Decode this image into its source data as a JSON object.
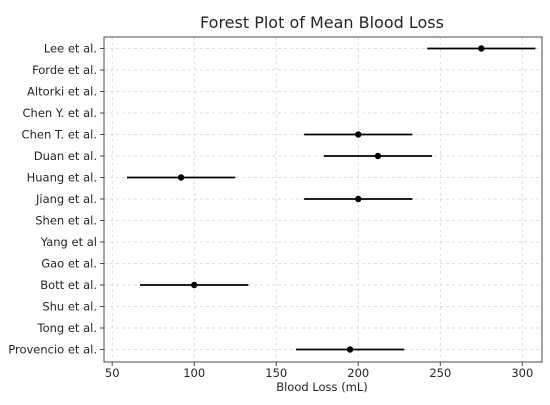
{
  "chart_data": {
    "type": "scatter",
    "title": "Forest Plot of Mean Blood Loss",
    "xlabel": "Blood Loss (mL)",
    "ylabel": "",
    "xlim": [
      45,
      312
    ],
    "xticks": [
      50,
      100,
      150,
      200,
      250,
      300
    ],
    "grid": true,
    "categories": [
      "Lee et al.",
      "Forde et al.",
      "Altorki et al.",
      "Chen Y. et al.",
      "Chen T. et al.",
      "Duan et al.",
      "Huang et al.",
      "Jiang et al.",
      "Shen et al.",
      "Yang et al",
      "Gao et al.",
      "Bott et al.",
      "Shu et al.",
      "Tong et al.",
      "Provencio et al."
    ],
    "points": [
      {
        "study": "Lee et al.",
        "mean": 275,
        "lower": 242,
        "upper": 308
      },
      {
        "study": "Forde et al.",
        "mean": null,
        "lower": null,
        "upper": null
      },
      {
        "study": "Altorki et al.",
        "mean": null,
        "lower": null,
        "upper": null
      },
      {
        "study": "Chen Y. et al.",
        "mean": null,
        "lower": null,
        "upper": null
      },
      {
        "study": "Chen T. et al.",
        "mean": 200,
        "lower": 167,
        "upper": 233
      },
      {
        "study": "Duan et al.",
        "mean": 212,
        "lower": 179,
        "upper": 245
      },
      {
        "study": "Huang et al.",
        "mean": 92,
        "lower": 59,
        "upper": 125
      },
      {
        "study": "Jiang et al.",
        "mean": 200,
        "lower": 167,
        "upper": 233
      },
      {
        "study": "Shen et al.",
        "mean": null,
        "lower": null,
        "upper": null
      },
      {
        "study": "Yang et al",
        "mean": null,
        "lower": null,
        "upper": null
      },
      {
        "study": "Gao et al.",
        "mean": null,
        "lower": null,
        "upper": null
      },
      {
        "study": "Bott et al.",
        "mean": 100,
        "lower": 67,
        "upper": 133
      },
      {
        "study": "Shu et al.",
        "mean": null,
        "lower": null,
        "upper": null
      },
      {
        "study": "Tong et al.",
        "mean": null,
        "lower": null,
        "upper": null
      },
      {
        "study": "Provencio et al.",
        "mean": 195,
        "lower": 162,
        "upper": 228
      }
    ],
    "colors": {
      "marker": "#000000",
      "grid": "#d4d4d4",
      "text": "#262626",
      "axis": "#4a4a4a"
    }
  }
}
